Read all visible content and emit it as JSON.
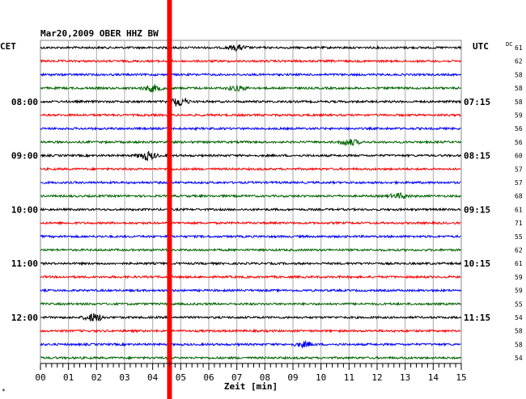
{
  "chart_data": {
    "type": "line",
    "header": "Mar20,2009   OBER HHZ BW",
    "left_tz": "CET",
    "right_tz": "UTC",
    "dc_label": "DC",
    "xlabel": "Zeit [min]",
    "corner_mark": "*",
    "x_range": [
      0,
      15
    ],
    "x_ticks": [
      "00",
      "01",
      "02",
      "03",
      "04",
      "05",
      "06",
      "07",
      "08",
      "09",
      "10",
      "11",
      "12",
      "13",
      "14",
      "15"
    ],
    "trace_colors": [
      "#000000",
      "#ff0000",
      "#0000ff",
      "#006400"
    ],
    "left_time_labels": [
      {
        "row": 4,
        "text": "08:00"
      },
      {
        "row": 8,
        "text": "09:00"
      },
      {
        "row": 12,
        "text": "10:00"
      },
      {
        "row": 16,
        "text": "11:00"
      },
      {
        "row": 20,
        "text": "12:00"
      }
    ],
    "right_time_labels": [
      {
        "row": 4,
        "text": "07:15"
      },
      {
        "row": 8,
        "text": "08:15"
      },
      {
        "row": 12,
        "text": "09:15"
      },
      {
        "row": 16,
        "text": "10:15"
      },
      {
        "row": 20,
        "text": "11:15"
      }
    ],
    "dc_values": [
      "61",
      "62",
      "58",
      "58",
      "58",
      "59",
      "56",
      "56",
      "60",
      "57",
      "57",
      "68",
      "61",
      "71",
      "55",
      "62",
      "61",
      "59",
      "59",
      "55",
      "54",
      "58",
      "58",
      "54"
    ],
    "marker": {
      "x_minute": 4.6,
      "color": "#ff0000"
    },
    "events": [
      {
        "row": 0,
        "minute": 7.0,
        "amp": 3
      },
      {
        "row": 3,
        "minute": 4.0,
        "amp": 4
      },
      {
        "row": 3,
        "minute": 7.0,
        "amp": 3
      },
      {
        "row": 4,
        "minute": 4.9,
        "amp": 6
      },
      {
        "row": 7,
        "minute": 11.0,
        "amp": 4
      },
      {
        "row": 8,
        "minute": 3.8,
        "amp": 5
      },
      {
        "row": 11,
        "minute": 12.8,
        "amp": 3
      },
      {
        "row": 20,
        "minute": 1.9,
        "amp": 5
      },
      {
        "row": 22,
        "minute": 9.4,
        "amp": 3
      }
    ]
  }
}
